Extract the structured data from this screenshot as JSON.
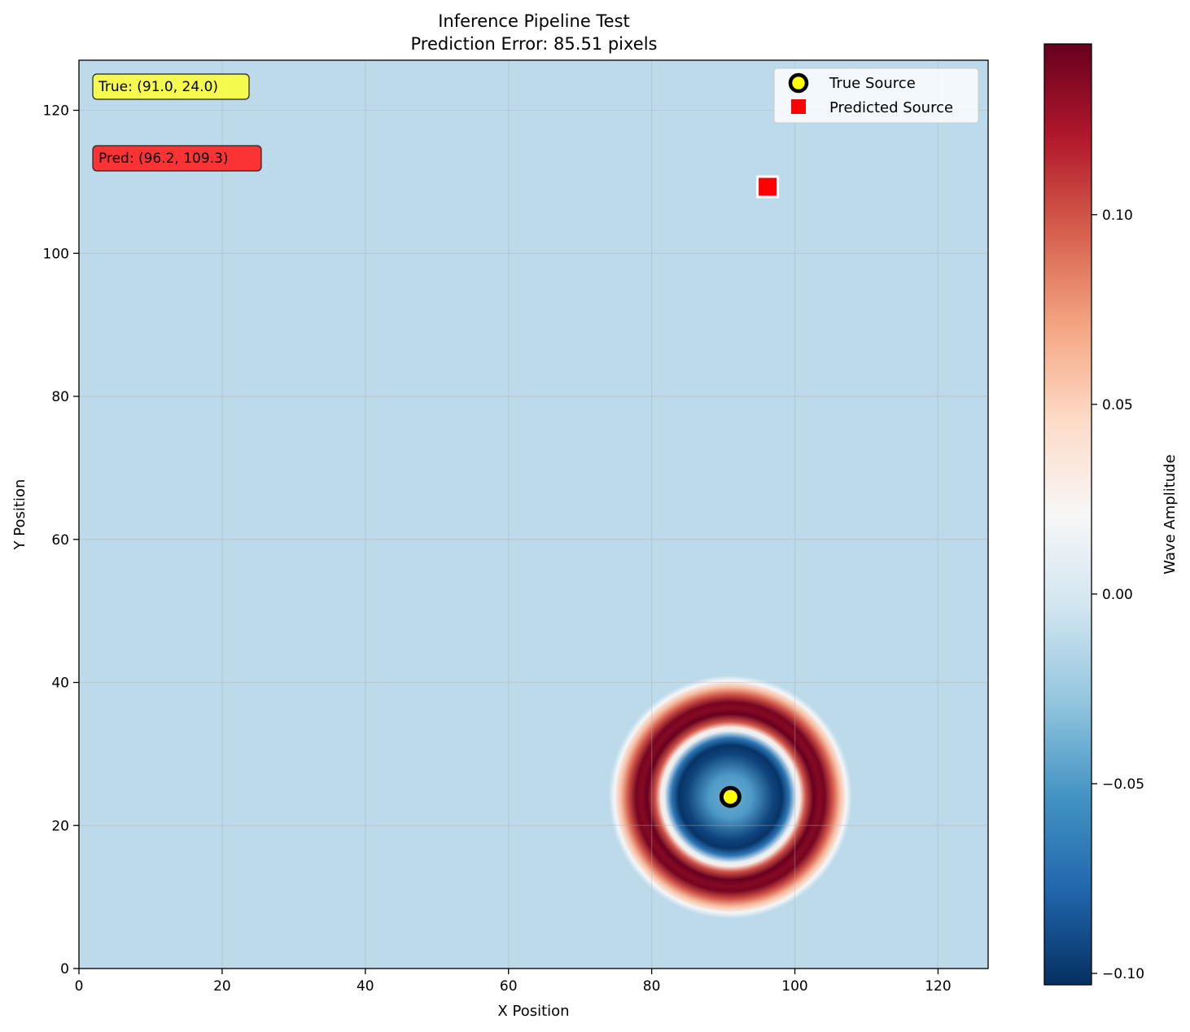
{
  "chart_data": {
    "type": "heatmap",
    "title": "Inference Pipeline Test",
    "subtitle": "Prediction Error: 85.51 pixels",
    "xlabel": "X Position",
    "ylabel": "Y Position",
    "xlim": [
      0,
      127
    ],
    "ylim": [
      0,
      127
    ],
    "x_ticks": [
      "0",
      "20",
      "40",
      "60",
      "80",
      "100",
      "120"
    ],
    "y_ticks": [
      "0",
      "20",
      "40",
      "60",
      "80",
      "100",
      "120"
    ],
    "x_tick_values": [
      0,
      20,
      40,
      60,
      80,
      100,
      120
    ],
    "y_tick_values": [
      0,
      20,
      40,
      60,
      80,
      100,
      120
    ],
    "grid": true,
    "colormap": "RdBu_r",
    "colorbar": {
      "label": "Wave Amplitude",
      "range": [
        -0.103,
        0.145
      ],
      "ticks": [
        "0.10",
        "0.05",
        "0.00",
        "−0.05",
        "−0.10"
      ],
      "tick_values": [
        0.1,
        0.05,
        0.0,
        -0.05,
        -0.1
      ]
    },
    "background_amplitude": -0.012,
    "wave_pattern": {
      "center": [
        91.0,
        24.0
      ],
      "rings": [
        {
          "radius_inner": 0,
          "radius_outer": 7.5,
          "amplitude_min": -0.04,
          "amplitude_max": -0.103
        },
        {
          "radius": 9.5,
          "amplitude": 0.02
        },
        {
          "radius": 12.2,
          "amplitude": 0.145
        },
        {
          "radius": 14.5,
          "amplitude": 0.09
        },
        {
          "radius": 17,
          "amplitude": -0.012
        }
      ]
    },
    "series": [
      {
        "name": "True Source",
        "x": 91.0,
        "y": 24.0,
        "marker": "circle",
        "color": "#ffff00",
        "edge_color": "#000000"
      },
      {
        "name": "Predicted Source",
        "x": 96.2,
        "y": 109.3,
        "marker": "square",
        "color": "#ff0000",
        "edge_color": "#ffffff"
      }
    ],
    "legend_position": "top-right",
    "annotations": [
      {
        "text": "True: (91.0, 24.0)",
        "color": "#ffff33"
      },
      {
        "text": "Pred: (96.2, 109.3)",
        "color": "#ff2a2a"
      }
    ]
  }
}
